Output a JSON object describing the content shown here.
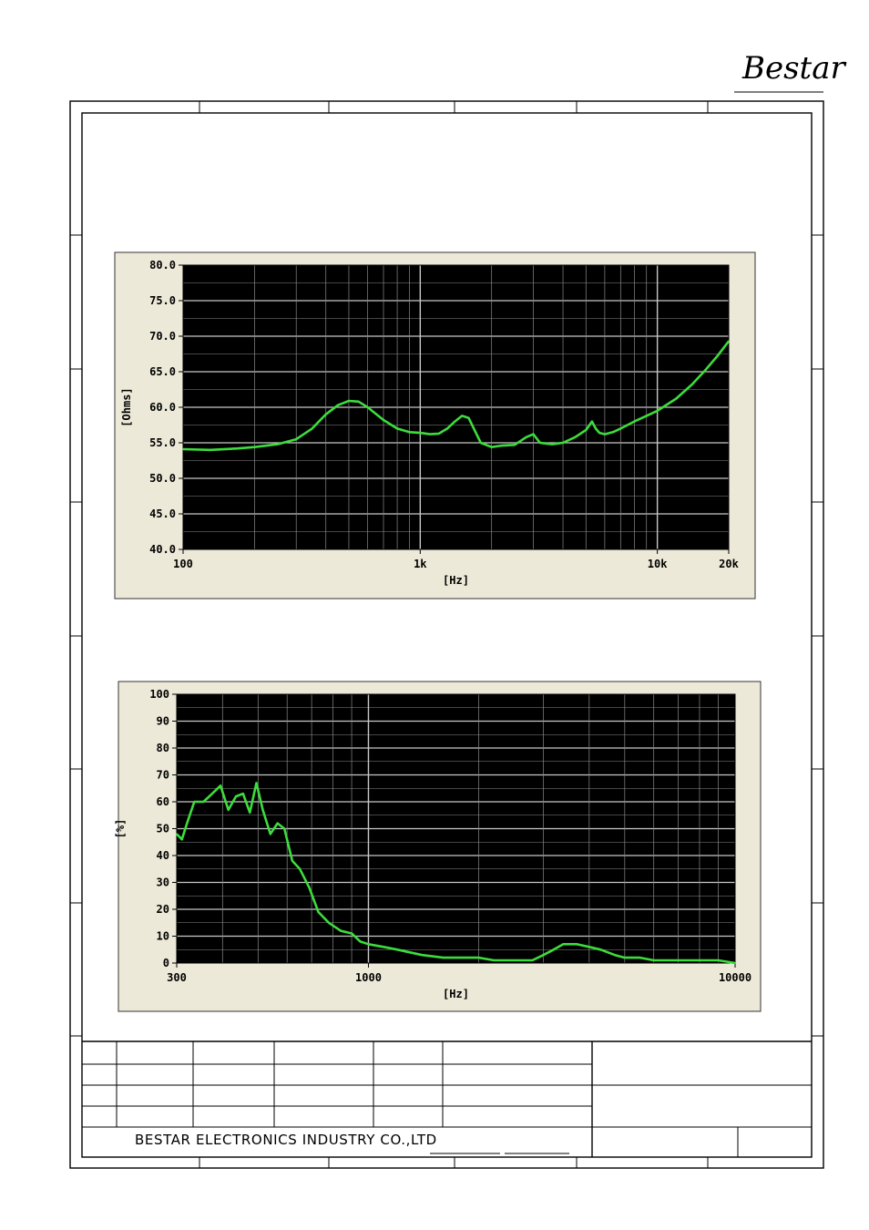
{
  "logo": {
    "text": "Bestar"
  },
  "footer": {
    "company": "BESTAR ELECTRONICS INDUSTRY CO.,LTD"
  },
  "colors": {
    "plot_bg": "#000000",
    "frame_bg": "#ece9d8",
    "curve": "#3ddc3d",
    "grid": "#8a8a8a",
    "grid_major": "#c8c8c8"
  },
  "chart_data": [
    {
      "type": "line",
      "xscale": "log",
      "xlim": [
        100,
        20000
      ],
      "ylim": [
        40,
        80
      ],
      "ylabel": "[Ohms]",
      "xlabel": "[Hz]",
      "xticks": [
        {
          "v": 100,
          "label": "100"
        },
        {
          "v": 1000,
          "label": "1k"
        },
        {
          "v": 10000,
          "label": "10k"
        },
        {
          "v": 20000,
          "label": "20k"
        }
      ],
      "yticks": [
        {
          "v": 40,
          "label": "40.0"
        },
        {
          "v": 45,
          "label": "45.0"
        },
        {
          "v": 50,
          "label": "50.0"
        },
        {
          "v": 55,
          "label": "55.0"
        },
        {
          "v": 60,
          "label": "60.0"
        },
        {
          "v": 65,
          "label": "65.0"
        },
        {
          "v": 70,
          "label": "70.0"
        },
        {
          "v": 75,
          "label": "75.0"
        },
        {
          "v": 80,
          "label": "80.0"
        }
      ],
      "grid": true,
      "series": [
        {
          "x": [
            100,
            130,
            170,
            200,
            250,
            300,
            350,
            400,
            450,
            500,
            550,
            600,
            700,
            800,
            900,
            1000,
            1100,
            1200,
            1300,
            1400,
            1500,
            1600,
            1700,
            1800,
            2000,
            2200,
            2500,
            2800,
            3000,
            3200,
            3400,
            3600,
            4000,
            4500,
            5000,
            5300,
            5500,
            5700,
            6000,
            6500,
            7000,
            8000,
            9000,
            10000,
            12000,
            14000,
            16000,
            18000,
            20000
          ],
          "y": [
            54.1,
            54.0,
            54.2,
            54.4,
            54.8,
            55.5,
            57.0,
            59.0,
            60.3,
            60.9,
            60.8,
            60.0,
            58.2,
            57.0,
            56.5,
            56.4,
            56.2,
            56.3,
            57.0,
            58.0,
            58.8,
            58.5,
            56.7,
            55.0,
            54.4,
            54.6,
            54.7,
            55.8,
            56.2,
            55.0,
            54.9,
            54.8,
            55.0,
            55.8,
            56.8,
            58.0,
            57.0,
            56.4,
            56.2,
            56.5,
            57.0,
            58.0,
            58.8,
            59.5,
            61.2,
            63.2,
            65.3,
            67.3,
            69.3
          ]
        }
      ]
    },
    {
      "type": "line",
      "xscale": "log",
      "xlim": [
        300,
        10000
      ],
      "ylim": [
        0,
        100
      ],
      "ylabel": "[%]",
      "xlabel": "[Hz]",
      "xticks": [
        {
          "v": 300,
          "label": "300"
        },
        {
          "v": 1000,
          "label": "1000"
        },
        {
          "v": 10000,
          "label": "10000"
        }
      ],
      "yticks": [
        {
          "v": 0,
          "label": "0"
        },
        {
          "v": 10,
          "label": "10"
        },
        {
          "v": 20,
          "label": "20"
        },
        {
          "v": 30,
          "label": "30"
        },
        {
          "v": 40,
          "label": "40"
        },
        {
          "v": 50,
          "label": "50"
        },
        {
          "v": 60,
          "label": "60"
        },
        {
          "v": 70,
          "label": "70"
        },
        {
          "v": 80,
          "label": "80"
        },
        {
          "v": 90,
          "label": "90"
        },
        {
          "v": 100,
          "label": "100"
        }
      ],
      "grid": true,
      "series": [
        {
          "x": [
            300,
            310,
            320,
            335,
            355,
            375,
            395,
            415,
            435,
            455,
            475,
            495,
            515,
            540,
            565,
            590,
            620,
            650,
            690,
            730,
            780,
            840,
            900,
            950,
            1000,
            1100,
            1200,
            1400,
            1600,
            1800,
            2000,
            2200,
            2500,
            2800,
            3000,
            3200,
            3400,
            3700,
            4000,
            4300,
            4700,
            5000,
            5500,
            6000,
            6500,
            7000,
            7500,
            8000,
            9000,
            10000
          ],
          "y": [
            48,
            46,
            52,
            60,
            60,
            63,
            66,
            57,
            62,
            63,
            56,
            67,
            57,
            48,
            52,
            50,
            38,
            35,
            28,
            19,
            15,
            12,
            11,
            8,
            7,
            6,
            5,
            3,
            2,
            2,
            2,
            1,
            1,
            1,
            3,
            5,
            7,
            7,
            6,
            5,
            3,
            2,
            2,
            1,
            1,
            1,
            1,
            1,
            1,
            0
          ]
        }
      ]
    }
  ]
}
